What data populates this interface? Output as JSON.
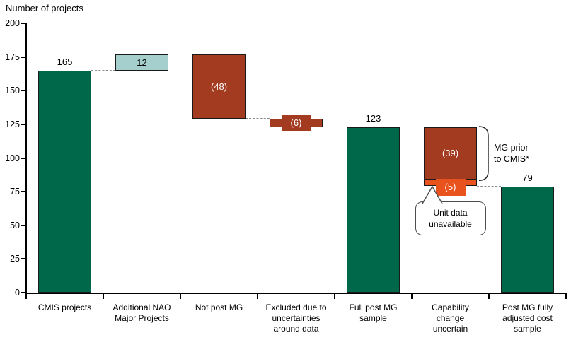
{
  "chart_data": {
    "type": "waterfall-bar",
    "title": "Number of projects",
    "ylabel": "",
    "ylim": [
      0,
      200
    ],
    "yticks": [
      0,
      25,
      50,
      75,
      100,
      125,
      150,
      175,
      200
    ],
    "grid": false,
    "colors": {
      "green": "#00684A",
      "teal": "#A5CFCC",
      "brick": "#A33B20",
      "orange": "#E8521D",
      "bar_border": "#1a1a1a",
      "connector": "#8c8c8c",
      "callout_border": "#4d4d4d",
      "bracket": "#222222"
    },
    "bars": [
      {
        "category": "CMIS projects",
        "segments": [
          {
            "from": 0,
            "to": 165,
            "color": "green"
          }
        ],
        "value_label": "165",
        "label_style": "above"
      },
      {
        "category": "Additional NAO\nMajor Projects",
        "segments": [
          {
            "from": 165,
            "to": 177,
            "color": "teal",
            "label": "12",
            "label_style": "inside-dark"
          }
        ]
      },
      {
        "category": "Not post MG",
        "segments": [
          {
            "from": 177,
            "to": 129,
            "color": "brick",
            "label": "(48)",
            "label_style": "inside-light"
          }
        ]
      },
      {
        "category": "Excluded due to\nuncertainties\naround data",
        "segments": [
          {
            "from": 129,
            "to": 123,
            "color": "brick",
            "label": "(6)",
            "label_style": "patch"
          }
        ]
      },
      {
        "category": "Full post MG\nsample",
        "segments": [
          {
            "from": 0,
            "to": 123,
            "color": "green"
          }
        ],
        "value_label": "123",
        "label_style": "above"
      },
      {
        "category": "Capability\nchange\nuncertain",
        "segments": [
          {
            "from": 123,
            "to": 84,
            "color": "brick",
            "label": "(39)",
            "label_style": "inside-light"
          },
          {
            "from": 84,
            "to": 79,
            "color": "orange",
            "label": "(5)",
            "label_style": "patch"
          }
        ]
      },
      {
        "category": "Post MG fully\nadjusted cost\nsample",
        "segments": [
          {
            "from": 0,
            "to": 79,
            "color": "green"
          }
        ],
        "value_label": "79",
        "label_style": "above"
      }
    ],
    "connectors": [
      {
        "level": 165,
        "from_bar": 0,
        "to_bar": 1
      },
      {
        "level": 177,
        "from_bar": 1,
        "to_bar": 2
      },
      {
        "level": 129,
        "from_bar": 2,
        "to_bar": 3
      },
      {
        "level": 123,
        "from_bar": 3,
        "to_bar": 4
      },
      {
        "level": 123,
        "from_bar": 4,
        "to_bar": 5
      },
      {
        "level": 79,
        "from_bar": 5,
        "to_bar": 6
      }
    ],
    "annotations": {
      "bracket": {
        "bar": 5,
        "from_value": 123,
        "to_value": 84,
        "label": "MG prior\nto CMIS*"
      },
      "callout": {
        "target_bar": 5,
        "label": "Unit data\nunavailable"
      }
    }
  }
}
